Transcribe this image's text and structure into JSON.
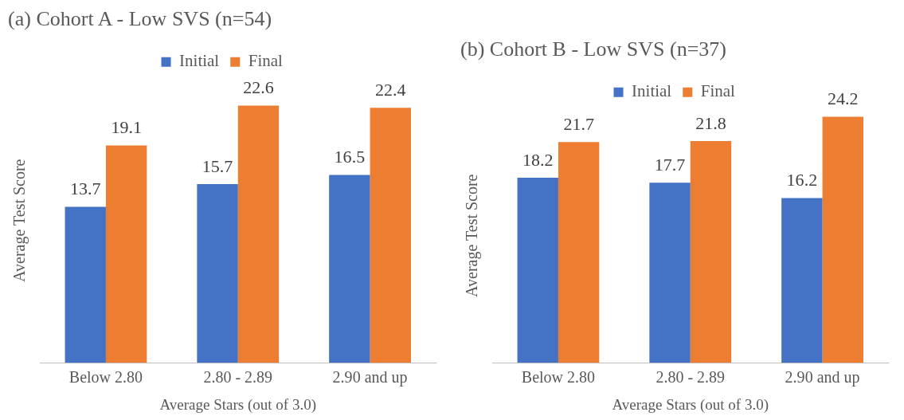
{
  "chart_data": [
    {
      "type": "bar",
      "title": "(a) Cohort A - Low SVS (n=54)",
      "xlabel": "Average Stars (out of 3.0)",
      "ylabel": "Average Test Score",
      "categories": [
        "Below 2.80",
        "2.80 - 2.89",
        "2.90 and up"
      ],
      "series": [
        {
          "name": "Initial",
          "color": "#4472c4",
          "values": [
            13.7,
            15.7,
            16.5
          ]
        },
        {
          "name": "Final",
          "color": "#ed7d31",
          "values": [
            19.1,
            22.6,
            22.4
          ]
        }
      ],
      "data_labels": true,
      "legend": "top",
      "grid": false
    },
    {
      "type": "bar",
      "title": "(b) Cohort B - Low SVS (n=37)",
      "xlabel": "Average Stars (out of 3.0)",
      "ylabel": "Average Test Score",
      "categories": [
        "Below 2.80",
        "2.80 - 2.89",
        "2.90 and up"
      ],
      "series": [
        {
          "name": "Initial",
          "color": "#4472c4",
          "values": [
            18.2,
            17.7,
            16.2
          ]
        },
        {
          "name": "Final",
          "color": "#ed7d31",
          "values": [
            21.7,
            21.8,
            24.2
          ]
        }
      ],
      "data_labels": true,
      "legend": "top",
      "grid": false
    }
  ]
}
